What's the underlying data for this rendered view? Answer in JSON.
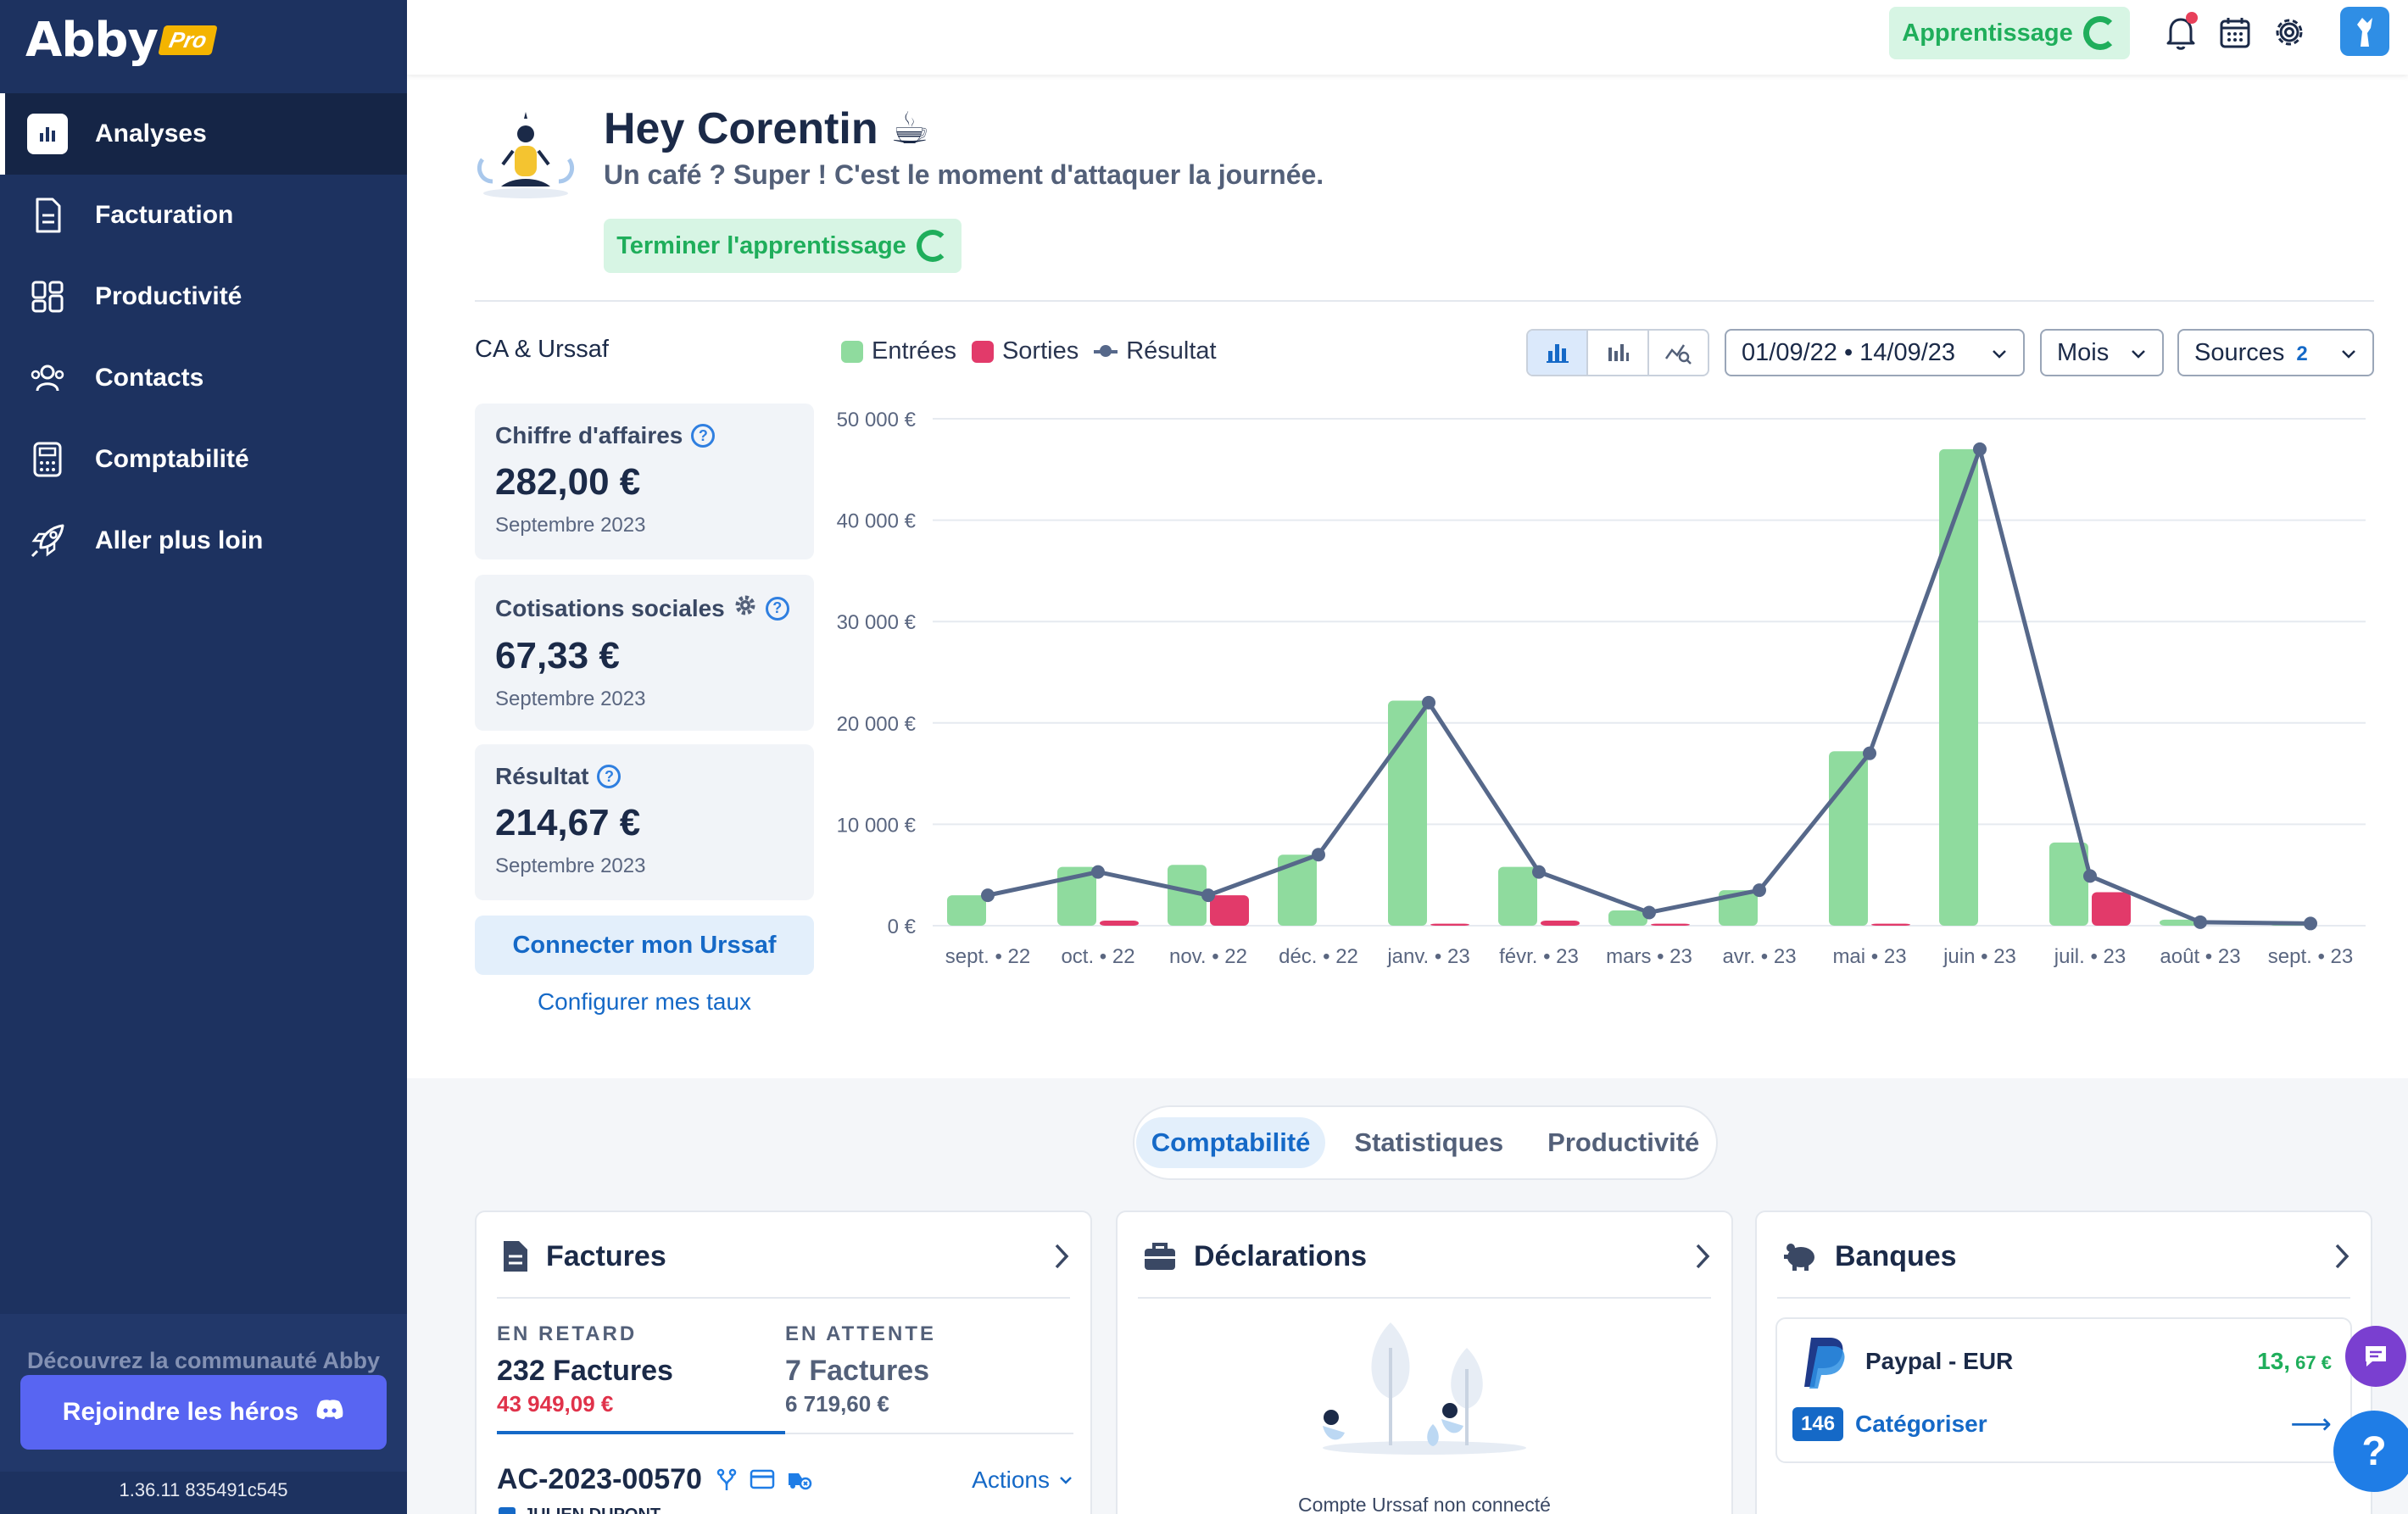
{
  "app": {
    "logo": "Abby",
    "logo_badge": "Pro"
  },
  "sidebar": {
    "items": [
      {
        "label": "Analyses",
        "icon": "chart-icon",
        "active": true
      },
      {
        "label": "Facturation",
        "icon": "document-icon"
      },
      {
        "label": "Productivité",
        "icon": "dashboard-icon"
      },
      {
        "label": "Contacts",
        "icon": "users-icon"
      },
      {
        "label": "Comptabilité",
        "icon": "calculator-icon"
      },
      {
        "label": "Aller plus loin",
        "icon": "rocket-icon"
      }
    ],
    "community_text": "Découvrez la communauté Abby",
    "join_label": "Rejoindre les héros",
    "version": "1.36.11 835491c545"
  },
  "topbar": {
    "learning_label": "Apprentissage",
    "icons": [
      "bell-icon",
      "calendar-icon",
      "gear-icon",
      "avatar"
    ]
  },
  "greeting": {
    "title": "Hey Corentin ☕",
    "subtitle": "Un café ? Super ! C'est le moment d'attaquer la journée.",
    "finish_label": "Terminer l'apprentissage"
  },
  "stats": {
    "section_title": "CA & Urssaf",
    "cards": [
      {
        "label": "Chiffre d'affaires",
        "value": "282,00 €",
        "period": "Septembre 2023"
      },
      {
        "label": "Cotisations sociales",
        "value": "67,33 €",
        "period": "Septembre 2023"
      },
      {
        "label": "Résultat",
        "value": "214,67 €",
        "period": "Septembre 2023"
      }
    ],
    "connect_label": "Connecter mon Urssaf",
    "configure_label": "Configurer mes taux"
  },
  "toolbar": {
    "date_range": "01/09/22 • 14/09/23",
    "granularity": "Mois",
    "sources_label": "Sources",
    "sources_count": "2"
  },
  "colors": {
    "sidebar": "#1d3260",
    "entrees": "#8fdb9e",
    "sorties": "#e23a6a",
    "resultat": "#56688a",
    "accent": "#1569c7",
    "success": "#1fae5b"
  },
  "chart_data": {
    "type": "bar",
    "title": "",
    "xlabel": "",
    "ylabel": "",
    "categories": [
      "sept. • 22",
      "oct. • 22",
      "nov. • 22",
      "déc. • 22",
      "janv. • 23",
      "févr. • 23",
      "mars • 23",
      "avr. • 23",
      "mai • 23",
      "juin • 23",
      "juil. • 23",
      "août • 23",
      "sept. • 23"
    ],
    "y_ticks": [
      "0 €",
      "10 000 €",
      "20 000 €",
      "30 000 €",
      "40 000 €",
      "50 000 €"
    ],
    "ylim": [
      0,
      50000
    ],
    "grid": true,
    "legend_position": "top",
    "series": [
      {
        "name": "Entrées",
        "type": "bar",
        "values": [
          3000,
          5800,
          6000,
          7000,
          22200,
          5800,
          1500,
          3500,
          17200,
          47000,
          8200,
          600,
          282
        ]
      },
      {
        "name": "Sorties",
        "type": "bar",
        "values": [
          0,
          500,
          3000,
          0,
          200,
          500,
          200,
          0,
          200,
          0,
          3300,
          0,
          0
        ]
      },
      {
        "name": "Résultat",
        "type": "line",
        "values": [
          3000,
          5300,
          3000,
          7000,
          22000,
          5300,
          1300,
          3500,
          17000,
          47000,
          4900,
          350,
          215
        ]
      }
    ]
  },
  "tabs": {
    "items": [
      "Comptabilité",
      "Statistiques",
      "Productivité"
    ],
    "active": 0
  },
  "cards": {
    "factures": {
      "title": "Factures",
      "late_caption": "EN RETARD",
      "late_count": "232 Factures",
      "late_amount": "43 949,09 €",
      "pending_caption": "EN ATTENTE",
      "pending_count": "7 Factures",
      "pending_amount": "6 719,60 €",
      "invoice_number": "AC-2023-00570",
      "actions_label": "Actions",
      "client": "JULIEN DUPONT"
    },
    "declarations": {
      "title": "Déclarations",
      "empty_text": "Compte Urssaf non connecté"
    },
    "banques": {
      "title": "Banques",
      "account_name": "Paypal - EUR",
      "balance_int": "13,",
      "balance_dec": " 67 €",
      "uncategorized_count": "146",
      "categorize_label": "Catégoriser"
    }
  }
}
